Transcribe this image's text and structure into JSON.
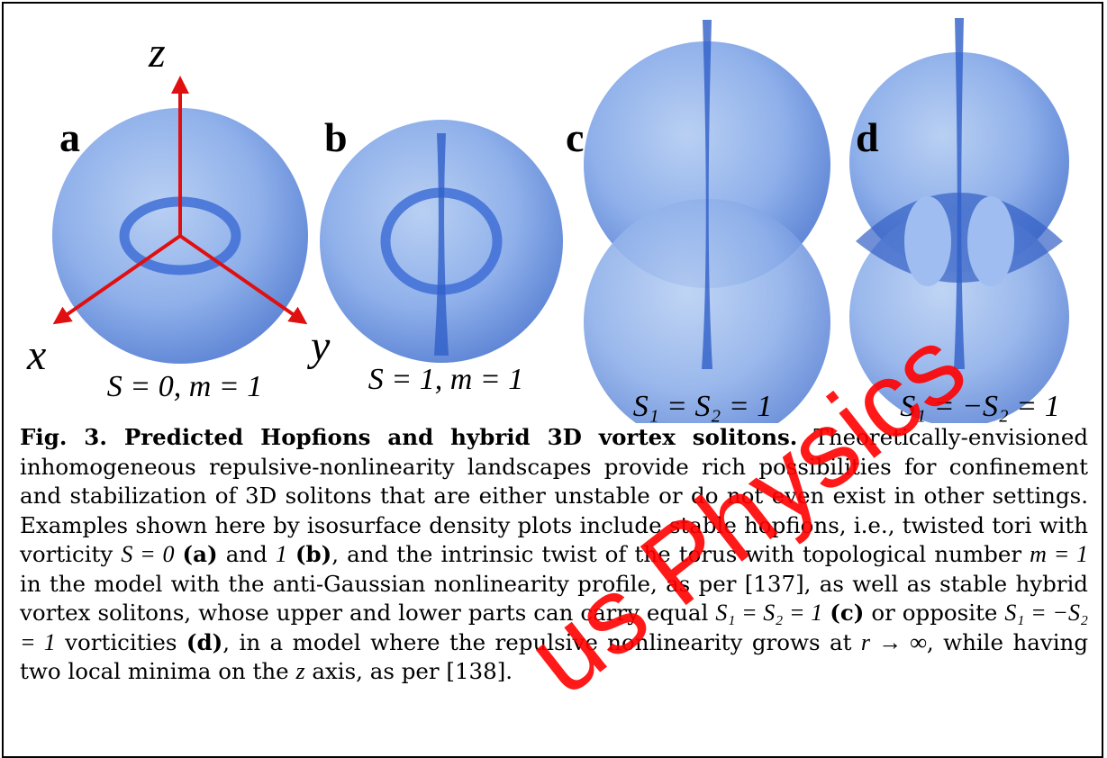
{
  "figure": {
    "panels": [
      {
        "label": "a",
        "formula": "S = 0, m = 1"
      },
      {
        "label": "b",
        "formula": "S = 1, m = 1"
      },
      {
        "label": "c",
        "formula": "S₁ = S₂ = 1"
      },
      {
        "label": "d",
        "formula": "S₁ = −S₂ = 1"
      }
    ],
    "axes": {
      "z": "z",
      "x": "x",
      "y": "y"
    }
  },
  "caption": {
    "segments": [
      {
        "text": "Fig. 3. Predicted Hopfions and hybrid 3D vortex solitons.",
        "style": "bold"
      },
      {
        "text": " Theoretically-envisioned inhomogeneous repulsive-nonlinearity landscapes provide rich possibilities for confinement and stabilization of 3D solitons that are either unstable or do not even exist in other settings. Examples shown here by isosurface density plots include stable hopfions, i.e., twisted tori with vorticity "
      },
      {
        "text": "S = 0",
        "style": "math"
      },
      {
        "text": " "
      },
      {
        "text": "(a)",
        "style": "bold"
      },
      {
        "text": " and "
      },
      {
        "text": "1",
        "style": "math"
      },
      {
        "text": " "
      },
      {
        "text": "(b)",
        "style": "bold"
      },
      {
        "text": ", and the intrinsic twist of the torus with topological number "
      },
      {
        "text": "m = 1",
        "style": "math"
      },
      {
        "text": " in the model with the anti-Gaussian nonlinearity profile, as per [137], as well as stable hybrid vortex solitons, whose upper and lower parts can carry equal "
      },
      {
        "text": "S₁ = S₂ = 1",
        "style": "math"
      },
      {
        "text": " "
      },
      {
        "text": "(c)",
        "style": "bold"
      },
      {
        "text": " or opposite "
      },
      {
        "text": "S₁ = −S₂ = 1",
        "style": "math"
      },
      {
        "text": " vorticities "
      },
      {
        "text": "(d)",
        "style": "bold"
      },
      {
        "text": ", in a model where the repulsive nonlinearity grows at "
      },
      {
        "text": "r → ∞",
        "style": "math"
      },
      {
        "text": ", while having two local minima on the "
      },
      {
        "text": "z",
        "style": "math"
      },
      {
        "text": " axis, as per [138]."
      }
    ]
  },
  "watermark": "us Physics"
}
